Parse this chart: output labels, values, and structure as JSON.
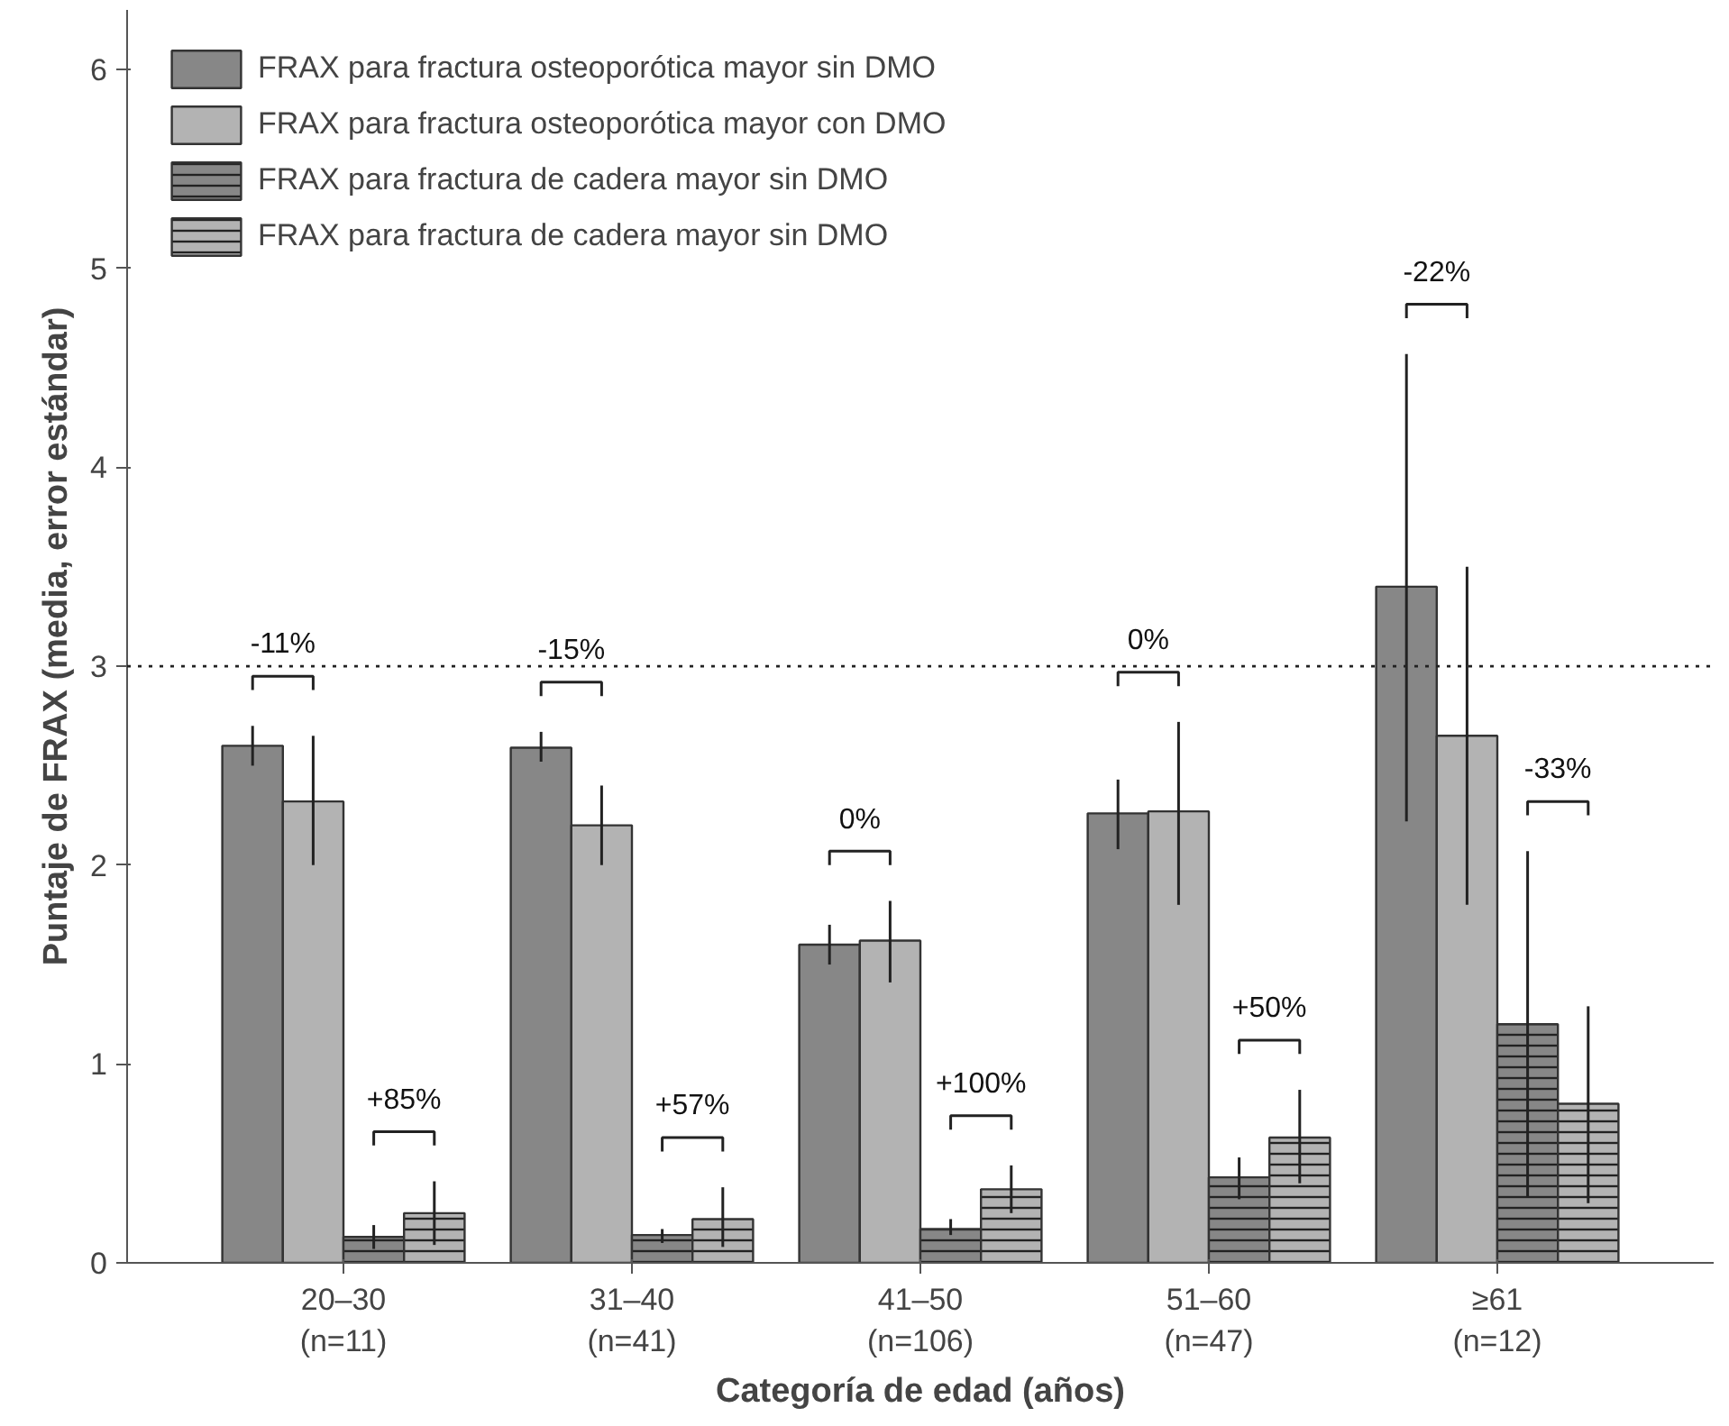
{
  "chart_data": {
    "type": "bar",
    "xlabel": "Categoría de edad (años)",
    "ylabel": "Puntaje de FRAX (media, error estándar)",
    "categories": [
      "20–30\n(n=11)",
      "31–40\n(n=41)",
      "41–50\n(n=106)",
      "51–60\n(n=47)",
      "≥61\n(n=12)"
    ],
    "series": [
      {
        "name": "FRAX para fractura osteoporótica mayor sin DMO",
        "color": "#878787",
        "values": [
          2.6,
          2.59,
          1.6,
          2.26,
          3.4
        ],
        "errors": [
          [
            2.5,
            2.7
          ],
          [
            2.52,
            2.67
          ],
          [
            1.5,
            1.7
          ],
          [
            2.08,
            2.43
          ],
          [
            2.22,
            4.57
          ]
        ]
      },
      {
        "name": "FRAX para fractura osteoporótica mayor con DMO",
        "color": "#b3b3b3",
        "values": [
          2.32,
          2.2,
          1.62,
          2.27,
          2.65
        ],
        "errors": [
          [
            2.0,
            2.65
          ],
          [
            2.0,
            2.4
          ],
          [
            1.41,
            1.82
          ],
          [
            1.8,
            2.72
          ],
          [
            1.8,
            3.5
          ]
        ]
      },
      {
        "name": "FRAX para fractura de cadera mayor sin DMO",
        "color": "#878787",
        "values": [
          0.13,
          0.14,
          0.17,
          0.43,
          1.2
        ],
        "errors": [
          [
            0.07,
            0.19
          ],
          [
            0.1,
            0.17
          ],
          [
            0.14,
            0.22
          ],
          [
            0.32,
            0.53
          ],
          [
            0.33,
            2.07
          ]
        ]
      },
      {
        "name": "FRAX para fractura de cadera mayor sin DMO",
        "color": "#b3b3b3",
        "values": [
          0.25,
          0.22,
          0.37,
          0.63,
          0.8
        ],
        "errors": [
          [
            0.09,
            0.41
          ],
          [
            0.08,
            0.38
          ],
          [
            0.25,
            0.49
          ],
          [
            0.4,
            0.87
          ],
          [
            0.3,
            1.29
          ]
        ]
      }
    ],
    "ylim": [
      0,
      6.3
    ],
    "yticks": [
      0,
      1,
      2,
      3,
      4,
      5,
      6
    ],
    "grid": false,
    "legend": "top left",
    "ref_lines": [
      {
        "axis": "y",
        "value": 3,
        "line_style": "dotted"
      }
    ],
    "annotations": [
      "-11%",
      "-15%",
      "0%",
      "0%",
      "-22%",
      "+85%",
      "+57%",
      "+100%",
      "+50%",
      "-33%"
    ]
  }
}
